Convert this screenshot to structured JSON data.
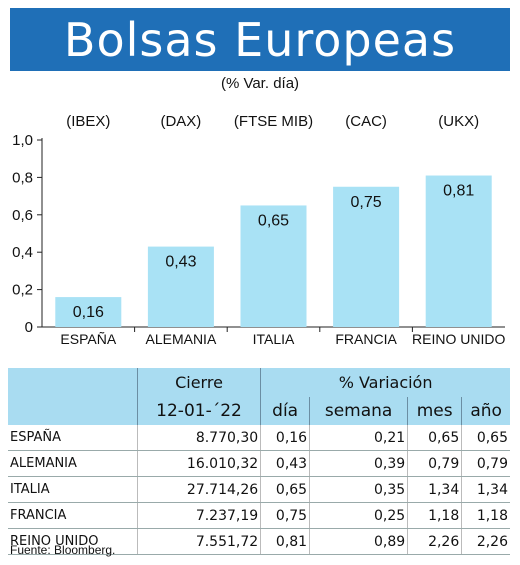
{
  "title": "Bolsas Europeas",
  "subtitle": "(% Var. día)",
  "chart_data": {
    "type": "bar",
    "categories": [
      "ESPAÑA",
      "ALEMANIA",
      "ITALIA",
      "FRANCIA",
      "REINO UNIDO"
    ],
    "indices": [
      "(IBEX)",
      "(DAX)",
      "(FTSE MIB)",
      "(CAC)",
      "(UKX)"
    ],
    "values": [
      0.16,
      0.43,
      0.65,
      0.75,
      0.81
    ],
    "value_labels": [
      "0,16",
      "0,43",
      "0,65",
      "0,75",
      "0,81"
    ],
    "ylim": [
      0,
      1.0
    ],
    "yticks": [
      0,
      0.2,
      0.4,
      0.6,
      0.8,
      1.0
    ],
    "ytick_labels": [
      "0",
      "0,2",
      "0,4",
      "0,6",
      "0,8",
      "1,0"
    ],
    "bar_color": "#a9e2f5",
    "grid": false
  },
  "table": {
    "group_headers": {
      "cierre": "Cierre",
      "variacion": "% Variación"
    },
    "columns": [
      "12-01-´22",
      "día",
      "semana",
      "mes",
      "año"
    ],
    "rows": [
      {
        "name": "ESPAÑA",
        "cierre": "8.770,30",
        "dia": "0,16",
        "semana": "0,21",
        "mes": "0,65",
        "anio": "0,65"
      },
      {
        "name": "ALEMANIA",
        "cierre": "16.010,32",
        "dia": "0,43",
        "semana": "0,39",
        "mes": "0,79",
        "anio": "0,79"
      },
      {
        "name": "ITALIA",
        "cierre": "27.714,26",
        "dia": "0,65",
        "semana": "0,35",
        "mes": "1,34",
        "anio": "1,34"
      },
      {
        "name": "FRANCIA",
        "cierre": "7.237,19",
        "dia": "0,75",
        "semana": "0,25",
        "mes": "1,18",
        "anio": "1,18"
      },
      {
        "name": "REINO UNIDO",
        "cierre": "7.551,72",
        "dia": "0,81",
        "semana": "0,89",
        "mes": "2,26",
        "anio": "2,26"
      }
    ]
  },
  "source": "Fuente: Bloomberg."
}
